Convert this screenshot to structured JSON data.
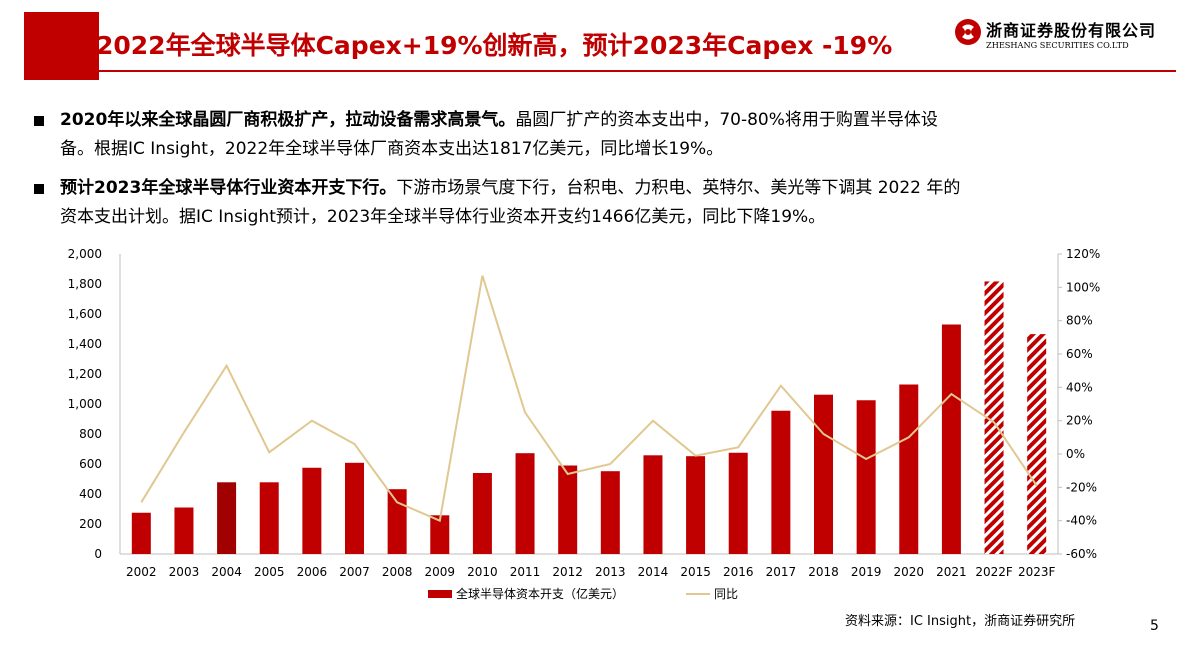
{
  "header": {
    "title": "2022年全球半导体Capex+19%创新高，预计2023年Capex -19%",
    "logo_cn": "浙商证券股份有限公司",
    "logo_en": "ZHESHANG SECURITIES CO.LTD",
    "logo_icon": "zheshang-logo-icon"
  },
  "bullets": [
    {
      "bold": "2020年以来全球晶圆厂商积极扩产，拉动设备需求高景气。",
      "line1": "晶圆厂扩产的资本支出中，70-80%将用于购置半导体设",
      "line2": "备。根据IC Insight，2022年全球半导体厂商资本支出达1817亿美元，同比增长19%。"
    },
    {
      "bold": "预计2023年全球半导体行业资本开支下行。",
      "line1": "下游市场景气度下行，台积电、力积电、英特尔、美光等下调其 2022 年的",
      "line2": "资本支出计划。据IC Insight预计，2023年全球半导体行业资本开支约1466亿美元，同比下降19%。"
    }
  ],
  "chart_data": {
    "type": "bar",
    "categories": [
      "2002",
      "2003",
      "2004",
      "2005",
      "2006",
      "2007",
      "2008",
      "2009",
      "2010",
      "2011",
      "2012",
      "2013",
      "2014",
      "2015",
      "2016",
      "2017",
      "2018",
      "2019",
      "2020",
      "2021",
      "2022F",
      "2023F"
    ],
    "series": [
      {
        "name": "全球半导体资本开支（亿美元）",
        "type": "bar",
        "axis": "left",
        "color": "#c00000",
        "values": [
          275,
          310,
          478,
          478,
          575,
          608,
          432,
          258,
          540,
          672,
          590,
          552,
          658,
          652,
          675,
          955,
          1062,
          1025,
          1130,
          1530,
          1817,
          1466
        ],
        "forecast_pattern": [
          "2022F",
          "2023F"
        ]
      },
      {
        "name": "同比",
        "type": "line",
        "axis": "right",
        "color": "#e0c890",
        "values": [
          -29,
          13,
          53,
          1,
          20,
          6,
          -29,
          -40,
          107,
          25,
          -12,
          -6,
          20,
          -1,
          4,
          41,
          12,
          -3,
          10,
          36,
          19,
          -19
        ]
      }
    ],
    "y_left": {
      "min": 0,
      "max": 2000,
      "step": 200,
      "tick_labels": [
        "0",
        "200",
        "400",
        "600",
        "800",
        "1,000",
        "1,200",
        "1,400",
        "1,600",
        "1,800",
        "2,000"
      ]
    },
    "y_right": {
      "min": -60,
      "max": 120,
      "step": 20,
      "tick_labels": [
        "-60%",
        "-40%",
        "-20%",
        "0%",
        "20%",
        "40%",
        "60%",
        "80%",
        "100%",
        "120%"
      ]
    },
    "grid": false,
    "legend_position": "bottom"
  },
  "footer": {
    "source": "资料来源：IC Insight，浙商证券研究所",
    "page": "5"
  }
}
